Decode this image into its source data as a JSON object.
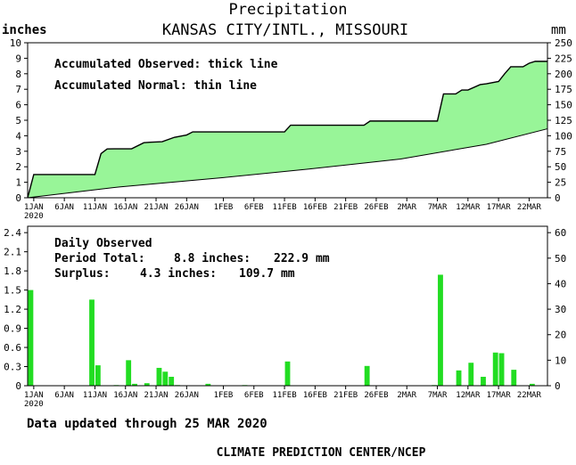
{
  "header": {
    "title": "Precipitation",
    "subtitle": "KANSAS CITY/INTL., MISSOURI",
    "left_unit": "inches",
    "right_unit": "mm"
  },
  "footer": {
    "updated": "Data updated through 25 MAR 2020",
    "credit": "CLIMATE PREDICTION CENTER/NCEP"
  },
  "colors": {
    "area_fill": "#98f598",
    "bar_fill": "#22dd22",
    "axis": "#000000"
  },
  "x_ticks": [
    "1JAN",
    "6JAN",
    "11JAN",
    "16JAN",
    "21JAN",
    "26JAN",
    "1FEB",
    "6FEB",
    "11FEB",
    "16FEB",
    "21FEB",
    "26FEB",
    "2MAR",
    "7MAR",
    "12MAR",
    "17MAR",
    "22MAR"
  ],
  "x_tick_sub": "2020",
  "chart_data": [
    {
      "type": "area",
      "legend": [
        "Accumulated Observed: thick line",
        "Accumulated Normal: thin line"
      ],
      "x_range": [
        "2019-12-31",
        "2020-03-25"
      ],
      "ylim": [
        0,
        10
      ],
      "ylim_mm": [
        0,
        250
      ],
      "y_ticks": [
        0,
        1,
        2,
        3,
        4,
        5,
        6,
        7,
        8,
        9,
        10
      ],
      "y_ticks_mm": [
        0,
        25,
        50,
        75,
        100,
        125,
        150,
        175,
        200,
        225,
        250
      ],
      "grid": false,
      "series": [
        {
          "name": "Accumulated Observed",
          "x": [
            "2019-12-31",
            "2020-01-01",
            "2020-01-11",
            "2020-01-12",
            "2020-01-13",
            "2020-01-15",
            "2020-01-17",
            "2020-01-19",
            "2020-01-20",
            "2020-01-22",
            "2020-01-24",
            "2020-01-26",
            "2020-01-27",
            "2020-02-11",
            "2020-02-12",
            "2020-02-24",
            "2020-02-25",
            "2020-03-07",
            "2020-03-08",
            "2020-03-10",
            "2020-03-11",
            "2020-03-12",
            "2020-03-14",
            "2020-03-15",
            "2020-03-17",
            "2020-03-18",
            "2020-03-19",
            "2020-03-20",
            "2020-03-21",
            "2020-03-22",
            "2020-03-23",
            "2020-03-25"
          ],
          "values": [
            0,
            1.5,
            1.5,
            2.85,
            3.15,
            3.16,
            3.16,
            3.55,
            3.58,
            3.62,
            3.9,
            4.05,
            4.25,
            4.25,
            4.68,
            4.68,
            4.95,
            4.95,
            6.7,
            6.7,
            6.95,
            6.95,
            7.3,
            7.35,
            7.5,
            8.0,
            8.45,
            8.45,
            8.45,
            8.68,
            8.8,
            8.8
          ]
        },
        {
          "name": "Accumulated Normal",
          "x": [
            "2019-12-31",
            "2020-01-15",
            "2020-02-01",
            "2020-02-15",
            "2020-03-01",
            "2020-03-15",
            "2020-03-25"
          ],
          "values": [
            0,
            0.7,
            1.3,
            1.85,
            2.5,
            3.45,
            4.45
          ]
        }
      ]
    },
    {
      "type": "bar",
      "title": "Daily Observed",
      "summary": [
        {
          "label": "Period Total:",
          "inches": "8.8 inches:",
          "mm": "222.9 mm"
        },
        {
          "label": "Surplus:",
          "inches": "4.3 inches:",
          "mm": "109.7 mm"
        }
      ],
      "ylim": [
        0,
        2.5
      ],
      "ylim_mm": [
        0,
        62.5
      ],
      "y_ticks": [
        "0",
        "0.3",
        "0.6",
        "0.9",
        "1.2",
        "1.5",
        "1.8",
        "2.1",
        "2.4"
      ],
      "y_ticks_mm": [
        0,
        10,
        20,
        30,
        40,
        50,
        60
      ],
      "grid": false,
      "x": [
        "2020-01-01",
        "2020-01-11",
        "2020-01-12",
        "2020-01-15",
        "2020-01-17",
        "2020-01-18",
        "2020-01-20",
        "2020-01-22",
        "2020-01-23",
        "2020-01-24",
        "2020-01-25",
        "2020-01-30",
        "2020-02-05",
        "2020-02-12",
        "2020-02-25",
        "2020-03-07",
        "2020-03-08",
        "2020-03-11",
        "2020-03-13",
        "2020-03-15",
        "2020-03-17",
        "2020-03-18",
        "2020-03-20",
        "2020-03-23"
      ],
      "values": [
        1.5,
        1.35,
        0.32,
        0.01,
        0.4,
        0.03,
        0.04,
        0.28,
        0.22,
        0.14,
        0.01,
        0.03,
        0.01,
        0.38,
        0.31,
        0.01,
        1.74,
        0.24,
        0.36,
        0.14,
        0.52,
        0.51,
        0.25,
        0.03
      ]
    }
  ]
}
